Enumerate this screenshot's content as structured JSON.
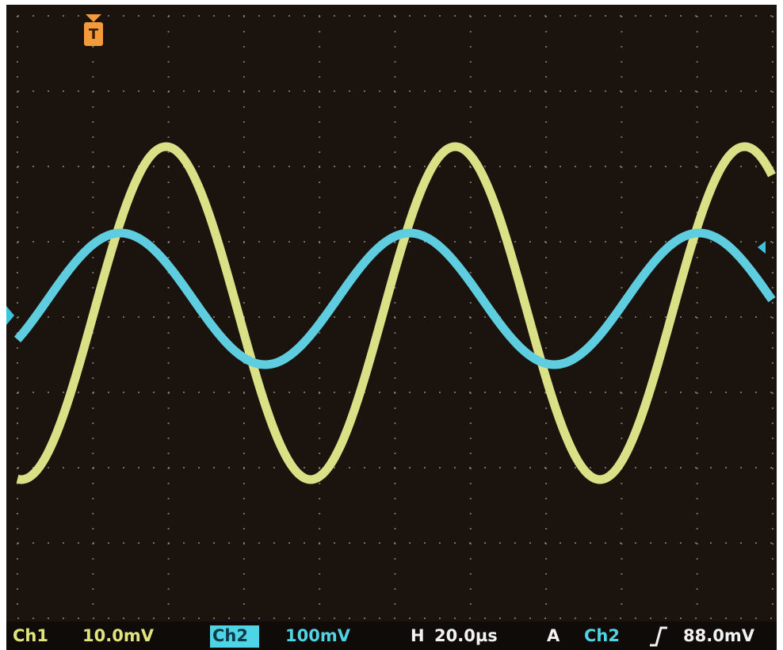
{
  "screen": {
    "trigger_marker": "T"
  },
  "status_bar": {
    "ch1_label": "Ch1",
    "ch1_scale": "10.0mV",
    "ch2_label": "Ch2",
    "ch2_scale": "100mV",
    "horizontal_label": "H",
    "horizontal_scale": "20.0µs",
    "trigger_mode": "A",
    "trigger_source": "Ch2",
    "trigger_level": "88.0mV"
  }
}
